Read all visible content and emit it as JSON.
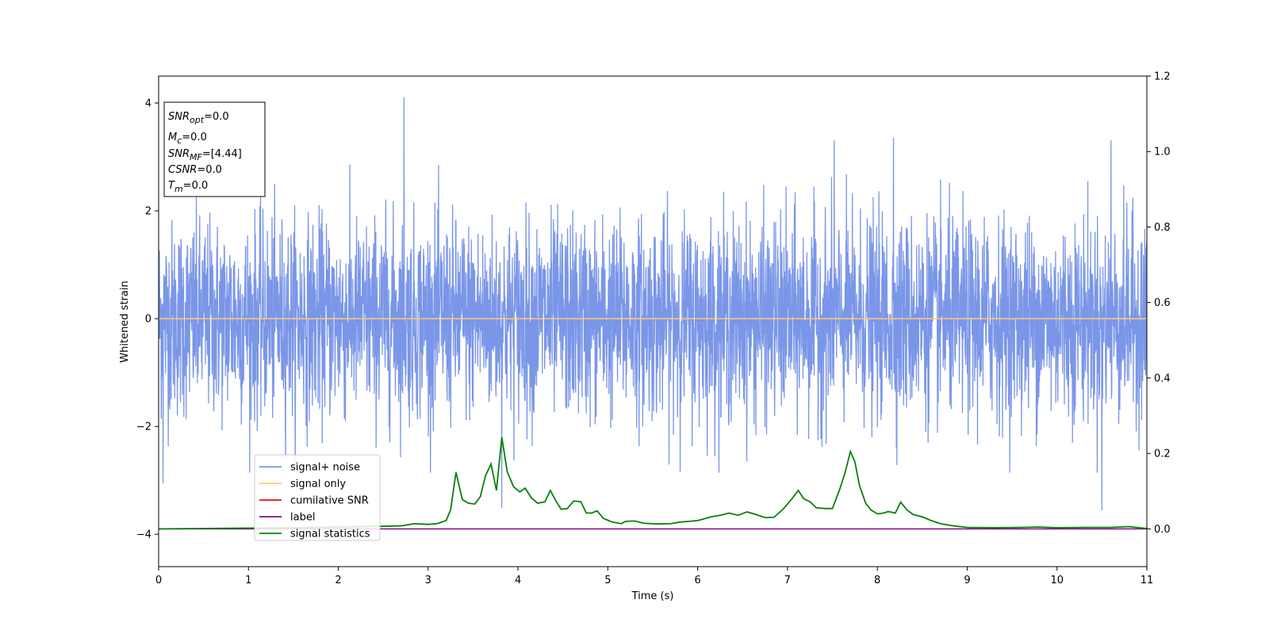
{
  "chart_data": {
    "type": "line",
    "xlabel": "Time (s)",
    "ylabel": "Whitened strain",
    "xlim": [
      0,
      11
    ],
    "ylim": [
      -4.6,
      4.5
    ],
    "y2lim": [
      -0.1,
      1.2
    ],
    "xticks": [
      0,
      1,
      2,
      3,
      4,
      5,
      6,
      7,
      8,
      9,
      10,
      11
    ],
    "yticks": [
      -4,
      -2,
      0,
      2,
      4
    ],
    "y2ticks": [
      0.0,
      0.2,
      0.4,
      0.6,
      0.8,
      1.0,
      1.2
    ],
    "grid": false,
    "legend": {
      "placement": "lower-left",
      "entries": [
        {
          "name": "signal+ noise",
          "color": "#7a96e8"
        },
        {
          "name": "signal only",
          "color": "#ffc870"
        },
        {
          "name": "cumilative SNR",
          "color": "#e81010"
        },
        {
          "name": "label",
          "color": "#7e0c86"
        },
        {
          "name": "signal statistics",
          "color": "#0b7f0b"
        }
      ]
    },
    "annotation": [
      {
        "main": "SNR",
        "sub": "opt",
        "rest": "=0.0"
      },
      {
        "main": "M",
        "sub": "c",
        "rest": "=0.0"
      },
      {
        "main": "SNR",
        "sub": "MF",
        "rest": "=[4.44]"
      },
      {
        "main": "CSNR",
        "sub": "",
        "rest": "=0.0"
      },
      {
        "main": "T",
        "sub": "m",
        "rest": "=0.0"
      }
    ],
    "series": [
      {
        "name": "signal+ noise",
        "axis": "left",
        "color": "#7a96e8",
        "style": "dense noise, approx +/-2 with peaks to about 4.1 (t=2.73) and -3.55 (t=10.5)",
        "peaks": [
          {
            "x": 2.73,
            "y": 4.1
          },
          {
            "x": 8.18,
            "y": 3.35
          },
          {
            "x": 7.52,
            "y": 3.3
          },
          {
            "x": 10.6,
            "y": 3.3
          },
          {
            "x": 10.5,
            "y": -3.55
          },
          {
            "x": 0.05,
            "y": -3.05
          },
          {
            "x": 3.82,
            "y": -3.5
          }
        ]
      },
      {
        "name": "signal only",
        "axis": "left",
        "color": "#ffc870",
        "x": [
          0,
          11
        ],
        "y": [
          0,
          0
        ]
      },
      {
        "name": "label",
        "axis": "right",
        "color": "#7e0c86",
        "x": [
          0,
          11
        ],
        "y": [
          0.0,
          0.0
        ]
      },
      {
        "name": "signal statistics",
        "axis": "right",
        "color": "#0b7f0b",
        "x": [
          0,
          0.5,
          1.0,
          1.5,
          2.0,
          2.5,
          2.7,
          2.85,
          3.0,
          3.1,
          3.2,
          3.25,
          3.31,
          3.38,
          3.45,
          3.52,
          3.58,
          3.64,
          3.7,
          3.76,
          3.82,
          3.88,
          3.95,
          4.02,
          4.08,
          4.15,
          4.22,
          4.3,
          4.36,
          4.42,
          4.48,
          4.55,
          4.62,
          4.7,
          4.76,
          4.82,
          4.88,
          4.95,
          5.05,
          5.15,
          5.2,
          5.3,
          5.4,
          5.55,
          5.7,
          5.8,
          5.9,
          6.0,
          6.15,
          6.25,
          6.35,
          6.45,
          6.55,
          6.65,
          6.75,
          6.85,
          6.95,
          7.05,
          7.12,
          7.18,
          7.25,
          7.32,
          7.42,
          7.5,
          7.58,
          7.64,
          7.7,
          7.75,
          7.8,
          7.87,
          7.93,
          8.0,
          8.07,
          8.12,
          8.2,
          8.26,
          8.33,
          8.4,
          8.5,
          8.6,
          8.7,
          8.85,
          9.0,
          9.3,
          9.6,
          9.8,
          10.0,
          10.3,
          10.6,
          10.8,
          11.0
        ],
        "y": [
          0.0,
          0.001,
          0.002,
          0.003,
          0.005,
          0.007,
          0.008,
          0.014,
          0.012,
          0.014,
          0.022,
          0.05,
          0.15,
          0.078,
          0.068,
          0.066,
          0.085,
          0.142,
          0.172,
          0.102,
          0.243,
          0.152,
          0.112,
          0.098,
          0.108,
          0.082,
          0.068,
          0.072,
          0.102,
          0.075,
          0.052,
          0.054,
          0.074,
          0.072,
          0.042,
          0.042,
          0.048,
          0.028,
          0.018,
          0.014,
          0.02,
          0.021,
          0.015,
          0.013,
          0.014,
          0.018,
          0.02,
          0.022,
          0.032,
          0.036,
          0.042,
          0.036,
          0.045,
          0.038,
          0.03,
          0.031,
          0.052,
          0.08,
          0.102,
          0.08,
          0.072,
          0.056,
          0.054,
          0.054,
          0.104,
          0.148,
          0.205,
          0.178,
          0.116,
          0.068,
          0.05,
          0.04,
          0.042,
          0.046,
          0.042,
          0.071,
          0.05,
          0.038,
          0.032,
          0.022,
          0.014,
          0.008,
          0.004,
          0.003,
          0.004,
          0.005,
          0.003,
          0.004,
          0.004,
          0.006,
          0.001
        ]
      }
    ]
  }
}
